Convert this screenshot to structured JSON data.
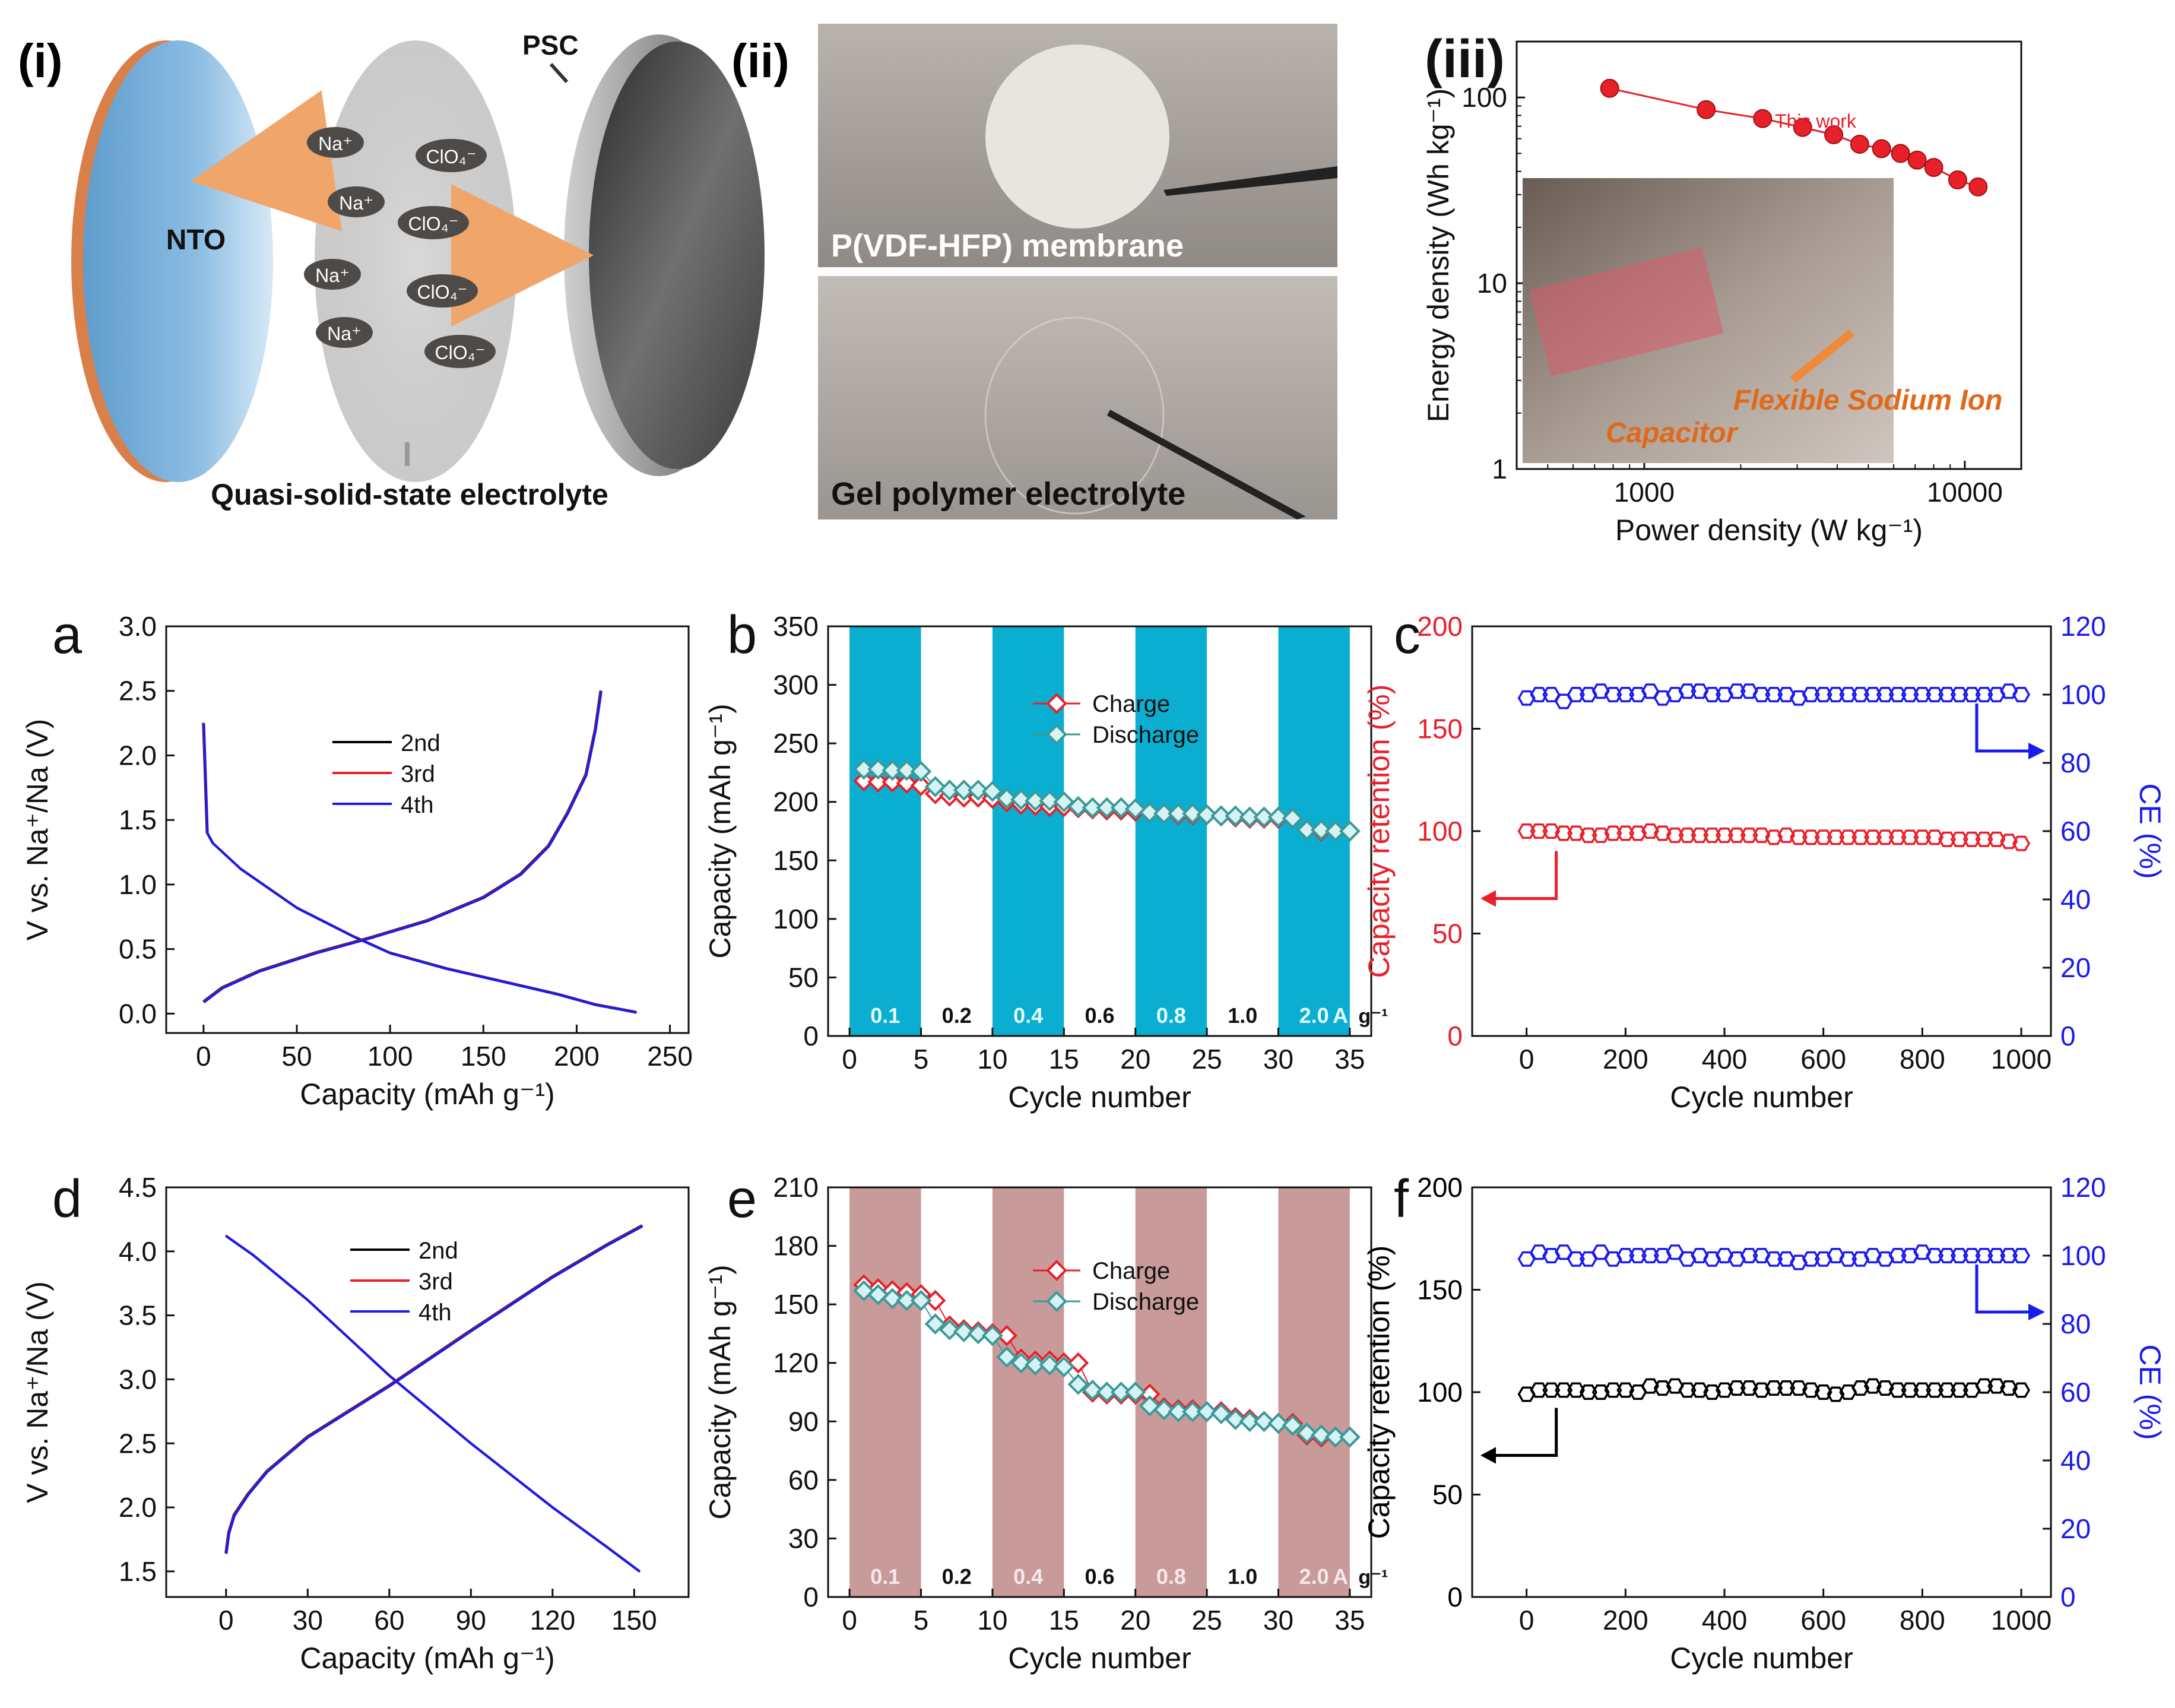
{
  "panel_labels": {
    "i": "(i)",
    "ii": "(ii)",
    "iii": "(iii)",
    "a": "a",
    "b": "b",
    "c": "c",
    "d": "d",
    "e": "e",
    "f": "f"
  },
  "schematic": {
    "nto": "NTO",
    "psc": "PSC",
    "ions": [
      "Na⁺",
      "ClO₄⁻",
      "Na⁺",
      "ClO₄⁻",
      "Na⁺",
      "ClO₄⁻",
      "Na⁺",
      "ClO₄⁻"
    ],
    "electrolyte_label": "Quasi-solid-state electrolyte"
  },
  "photos": {
    "top_label": "P(VDF-HFP) membrane",
    "bottom_label": "Gel polymer electrolyte"
  },
  "colors": {
    "red": "#e8202a",
    "blue": "#1a1aee",
    "black": "#000000",
    "teal": "#3a9a9a",
    "cyan_band": "#0aaed0",
    "rose_band": "#c99a9a",
    "nto_blue": "#7fb3db",
    "copper": "#d9804a"
  },
  "chart_data": [
    {
      "id": "iii",
      "type": "scatter",
      "xscale": "log",
      "yscale": "log",
      "xlabel": "Power density (W kg⁻¹)",
      "ylabel": "Energy density (Wh kg⁻¹)",
      "xlim": [
        400,
        15000
      ],
      "ylim": [
        1,
        200
      ],
      "xticks": [
        {
          "v": 1000,
          "label": "1000"
        },
        {
          "v": 10000,
          "label": "10000"
        }
      ],
      "yticks": [
        {
          "v": 1,
          "label": "1"
        },
        {
          "v": 10,
          "label": "10"
        },
        {
          "v": 100,
          "label": "100"
        }
      ],
      "series": [
        {
          "name": "This work",
          "x": [
            780,
            1560,
            2340,
            3120,
            3900,
            4700,
            5500,
            6300,
            7100,
            8000,
            9500,
            11000
          ],
          "y": [
            112,
            86,
            77,
            69,
            63,
            56,
            53,
            50,
            46,
            42,
            36,
            33
          ]
        }
      ],
      "annotation": "This work",
      "inset_caption": "Flexible Sodium Ion Capacitor"
    },
    {
      "id": "a",
      "type": "line",
      "xlabel": "Capacity (mAh g⁻¹)",
      "ylabel": "V vs. Na⁺/Na (V)",
      "xlim": [
        -20,
        260
      ],
      "ylim": [
        -0.15,
        3.0
      ],
      "xticks": [
        0,
        50,
        100,
        150,
        200,
        250
      ],
      "yticks": [
        0.0,
        0.5,
        1.0,
        1.5,
        2.0,
        2.5,
        3.0
      ],
      "legend": [
        "2nd",
        "3rd",
        "4th"
      ],
      "series": [
        {
          "name": "discharge",
          "x": [
            0,
            2,
            5,
            20,
            50,
            80,
            100,
            130,
            160,
            190,
            210,
            225,
            232
          ],
          "y": [
            2.25,
            1.4,
            1.32,
            1.12,
            0.82,
            0.6,
            0.47,
            0.35,
            0.25,
            0.15,
            0.07,
            0.03,
            0.01
          ]
        },
        {
          "name": "charge",
          "x": [
            0,
            10,
            30,
            60,
            90,
            120,
            150,
            170,
            185,
            195,
            205,
            210,
            213
          ],
          "y": [
            0.09,
            0.2,
            0.33,
            0.47,
            0.59,
            0.72,
            0.9,
            1.08,
            1.3,
            1.55,
            1.85,
            2.2,
            2.5
          ]
        }
      ]
    },
    {
      "id": "b",
      "type": "scatter",
      "xlabel": "Cycle number",
      "ylabel": "Capacity (mAh g⁻¹)",
      "xlim": [
        -1.5,
        36.5
      ],
      "ylim": [
        0,
        350
      ],
      "xticks": [
        0,
        5,
        10,
        15,
        20,
        25,
        30,
        35
      ],
      "yticks": [
        0,
        50,
        100,
        150,
        200,
        250,
        300,
        350
      ],
      "rates": [
        "0.1",
        "0.2",
        "0.4",
        "0.6",
        "0.8",
        "1.0",
        "2.0"
      ],
      "rate_unit": "A g⁻¹",
      "series": [
        {
          "name": "Charge",
          "x": [
            1,
            2,
            3,
            4,
            5,
            6,
            7,
            8,
            9,
            10,
            11,
            12,
            13,
            14,
            15,
            16,
            17,
            18,
            19,
            20,
            21,
            22,
            23,
            24,
            25,
            26,
            27,
            28,
            29,
            30,
            31,
            32,
            33,
            34,
            35
          ],
          "y": [
            218,
            217,
            217,
            216,
            214,
            207,
            205,
            204,
            204,
            203,
            200,
            198,
            197,
            196,
            196,
            195,
            194,
            193,
            193,
            192,
            191,
            190,
            189,
            189,
            189,
            188,
            187,
            186,
            186,
            186,
            186,
            176,
            175,
            175,
            175
          ]
        },
        {
          "name": "Discharge",
          "x": [
            1,
            2,
            3,
            4,
            5,
            6,
            7,
            8,
            9,
            10,
            11,
            12,
            13,
            14,
            15,
            16,
            17,
            18,
            19,
            20,
            21,
            22,
            23,
            24,
            25,
            26,
            27,
            28,
            29,
            30,
            31,
            32,
            33,
            34,
            35
          ],
          "y": [
            228,
            228,
            227,
            227,
            226,
            213,
            210,
            210,
            210,
            209,
            203,
            202,
            201,
            201,
            200,
            196,
            195,
            195,
            195,
            194,
            191,
            190,
            190,
            190,
            189,
            188,
            188,
            187,
            187,
            187,
            186,
            176,
            176,
            175,
            175
          ]
        }
      ]
    },
    {
      "id": "c",
      "type": "scatter",
      "dual_axis": true,
      "xlabel": "Cycle number",
      "ylabel": "Capacity retention (%)",
      "y2label": "CE (%)",
      "xlim": [
        -110,
        1060
      ],
      "ylim": [
        0,
        200
      ],
      "y2lim": [
        0,
        120
      ],
      "xticks": [
        0,
        200,
        400,
        600,
        800,
        1000
      ],
      "yticks": [
        0,
        50,
        100,
        150,
        200
      ],
      "y2ticks": [
        0,
        20,
        40,
        60,
        80,
        100,
        120
      ],
      "series": [
        {
          "name": "Capacity retention",
          "axis": "left",
          "x": [
            0,
            25,
            50,
            75,
            100,
            125,
            150,
            175,
            200,
            225,
            250,
            275,
            300,
            325,
            350,
            375,
            400,
            425,
            450,
            475,
            500,
            525,
            550,
            575,
            600,
            625,
            650,
            675,
            700,
            725,
            750,
            775,
            800,
            825,
            850,
            875,
            900,
            925,
            950,
            975,
            1000
          ],
          "y": [
            100,
            100,
            100,
            99,
            99,
            98,
            98,
            99,
            99,
            99,
            100,
            99,
            98,
            98,
            98,
            98,
            98,
            98,
            98,
            98,
            97,
            98,
            97,
            97,
            97,
            97,
            97,
            97,
            97,
            97,
            97,
            97,
            97,
            97,
            96,
            96,
            96,
            96,
            96,
            95,
            94
          ]
        },
        {
          "name": "CE",
          "axis": "right",
          "x": [
            0,
            25,
            50,
            75,
            100,
            125,
            150,
            175,
            200,
            225,
            250,
            275,
            300,
            325,
            350,
            375,
            400,
            425,
            450,
            475,
            500,
            525,
            550,
            575,
            600,
            625,
            650,
            675,
            700,
            725,
            750,
            775,
            800,
            825,
            850,
            875,
            900,
            925,
            950,
            975,
            1000
          ],
          "y": [
            99,
            100,
            100,
            98,
            100,
            100,
            101,
            100,
            100,
            100,
            101,
            99,
            100,
            101,
            101,
            100,
            100,
            101,
            101,
            100,
            100,
            100,
            99,
            100,
            100,
            100,
            100,
            100,
            100,
            100,
            100,
            100,
            100,
            100,
            100,
            100,
            100,
            100,
            100,
            101,
            100
          ]
        }
      ]
    },
    {
      "id": "d",
      "type": "line",
      "xlabel": "Capacity (mAh g⁻¹)",
      "ylabel": "V vs. Na⁺/Na (V)",
      "xlim": [
        -22,
        170
      ],
      "ylim": [
        1.3,
        4.5
      ],
      "xticks": [
        0,
        30,
        60,
        90,
        120,
        150
      ],
      "yticks": [
        1.5,
        2.0,
        2.5,
        3.0,
        3.5,
        4.0,
        4.5
      ],
      "legend": [
        "2nd",
        "3rd",
        "4th"
      ],
      "series": [
        {
          "name": "discharge",
          "x": [
            0,
            10,
            30,
            60,
            90,
            120,
            140,
            152
          ],
          "y": [
            4.12,
            3.97,
            3.62,
            3.03,
            2.5,
            2.0,
            1.69,
            1.5
          ]
        },
        {
          "name": "charge",
          "x": [
            0,
            1,
            3,
            8,
            15,
            30,
            60,
            90,
            120,
            140,
            153
          ],
          "y": [
            1.64,
            1.8,
            1.94,
            2.1,
            2.28,
            2.55,
            2.95,
            3.38,
            3.8,
            4.05,
            4.2
          ]
        }
      ]
    },
    {
      "id": "e",
      "type": "scatter",
      "xlabel": "Cycle number",
      "ylabel": "Capacity (mAh g⁻¹)",
      "xlim": [
        -1.5,
        36.5
      ],
      "ylim": [
        0,
        210
      ],
      "xticks": [
        0,
        5,
        10,
        15,
        20,
        25,
        30,
        35
      ],
      "yticks": [
        0,
        30,
        60,
        90,
        120,
        150,
        180,
        210
      ],
      "rates": [
        "0.1",
        "0.2",
        "0.4",
        "0.6",
        "0.8",
        "1.0",
        "2.0"
      ],
      "rate_unit": "A g⁻¹",
      "series": [
        {
          "name": "Charge",
          "x": [
            1,
            2,
            3,
            4,
            5,
            6,
            7,
            8,
            9,
            10,
            11,
            12,
            13,
            14,
            15,
            16,
            17,
            18,
            19,
            20,
            21,
            22,
            23,
            24,
            25,
            26,
            27,
            28,
            29,
            30,
            31,
            32,
            33,
            34,
            35
          ],
          "y": [
            160,
            158,
            157,
            156,
            155,
            152,
            139,
            137,
            136,
            135,
            134,
            122,
            121,
            121,
            120,
            120,
            105,
            104,
            104,
            104,
            104,
            97,
            96,
            96,
            95,
            95,
            92,
            91,
            90,
            89,
            89,
            83,
            82,
            82,
            82
          ]
        },
        {
          "name": "Discharge",
          "x": [
            1,
            2,
            3,
            4,
            5,
            6,
            7,
            8,
            9,
            10,
            11,
            12,
            13,
            14,
            15,
            16,
            17,
            18,
            19,
            20,
            21,
            22,
            23,
            24,
            25,
            26,
            27,
            28,
            29,
            30,
            31,
            32,
            33,
            34,
            35
          ],
          "y": [
            157,
            155,
            153,
            152,
            152,
            140,
            137,
            136,
            135,
            134,
            123,
            120,
            119,
            119,
            118,
            109,
            106,
            105,
            105,
            105,
            98,
            96,
            95,
            95,
            95,
            94,
            91,
            90,
            90,
            89,
            88,
            84,
            83,
            82,
            82
          ]
        }
      ]
    },
    {
      "id": "f",
      "type": "scatter",
      "dual_axis": true,
      "xlabel": "Cycle number",
      "ylabel": "Capacity retention (%)",
      "y2label": "CE (%)",
      "xlim": [
        -110,
        1060
      ],
      "ylim": [
        0,
        200
      ],
      "y2lim": [
        0,
        120
      ],
      "xticks": [
        0,
        200,
        400,
        600,
        800,
        1000
      ],
      "yticks": [
        0,
        50,
        100,
        150,
        200
      ],
      "y2ticks": [
        0,
        20,
        40,
        60,
        80,
        100,
        120
      ],
      "series": [
        {
          "name": "Capacity retention",
          "axis": "left",
          "x": [
            0,
            25,
            50,
            75,
            100,
            125,
            150,
            175,
            200,
            225,
            250,
            275,
            300,
            325,
            350,
            375,
            400,
            425,
            450,
            475,
            500,
            525,
            550,
            575,
            600,
            625,
            650,
            675,
            700,
            725,
            750,
            775,
            800,
            825,
            850,
            875,
            900,
            925,
            950,
            975,
            1000
          ],
          "y": [
            99,
            101,
            101,
            101,
            101,
            100,
            100,
            101,
            101,
            100,
            103,
            102,
            103,
            101,
            101,
            100,
            101,
            102,
            102,
            101,
            102,
            102,
            102,
            101,
            100,
            99,
            100,
            102,
            103,
            102,
            101,
            101,
            101,
            101,
            101,
            101,
            101,
            103,
            103,
            102,
            101
          ]
        },
        {
          "name": "CE",
          "axis": "right",
          "x": [
            0,
            25,
            50,
            75,
            100,
            125,
            150,
            175,
            200,
            225,
            250,
            275,
            300,
            325,
            350,
            375,
            400,
            425,
            450,
            475,
            500,
            525,
            550,
            575,
            600,
            625,
            650,
            675,
            700,
            725,
            750,
            775,
            800,
            825,
            850,
            875,
            900,
            925,
            950,
            975,
            1000
          ],
          "y": [
            99,
            101,
            100,
            101,
            99,
            99,
            101,
            99,
            100,
            100,
            100,
            100,
            101,
            99,
            100,
            99,
            100,
            99,
            100,
            100,
            99,
            99,
            98,
            99,
            99,
            100,
            99,
            99,
            100,
            99,
            100,
            100,
            101,
            100,
            100,
            100,
            100,
            100,
            100,
            100,
            100
          ]
        }
      ]
    }
  ]
}
